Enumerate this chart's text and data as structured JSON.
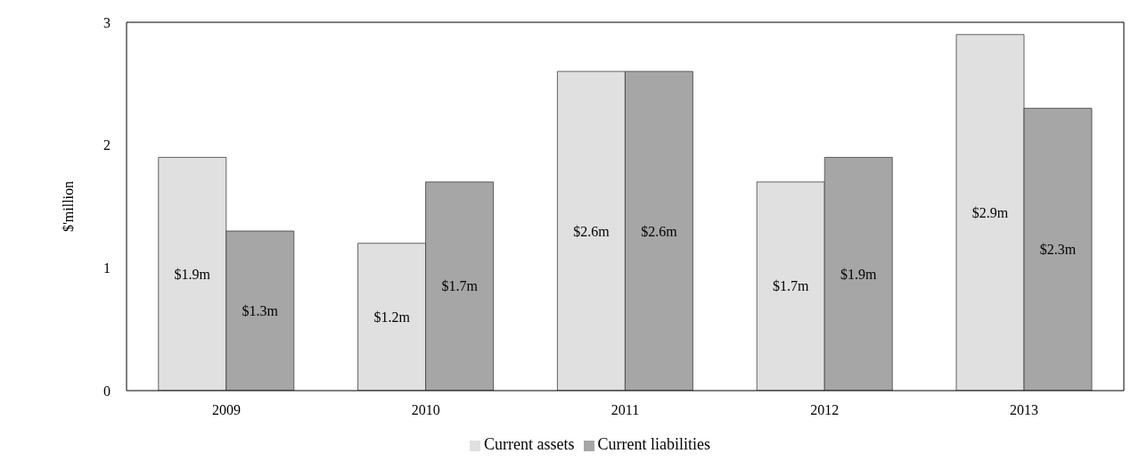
{
  "chart_data": {
    "type": "bar",
    "ylabel": "$'million",
    "categories": [
      "2009",
      "2010",
      "2011",
      "2012",
      "2013"
    ],
    "series": [
      {
        "name": "Current assets",
        "color": "#e0e0e0",
        "values": [
          1.9,
          1.2,
          2.6,
          1.7,
          2.9
        ],
        "value_labels": [
          "$1.9m",
          "$1.2m",
          "$2.6m",
          "$1.7m",
          "$2.9m"
        ]
      },
      {
        "name": "Current liabilities",
        "color": "#a6a6a6",
        "values": [
          1.3,
          1.7,
          2.6,
          1.9,
          2.3
        ],
        "value_labels": [
          "$1.3m",
          "$1.7m",
          "$2.6m",
          "$1.9m",
          "$2.3m"
        ]
      }
    ],
    "ylim": [
      0,
      3
    ],
    "yticks": [
      0,
      1,
      2,
      3
    ],
    "grid": false,
    "legend": "bottom"
  }
}
